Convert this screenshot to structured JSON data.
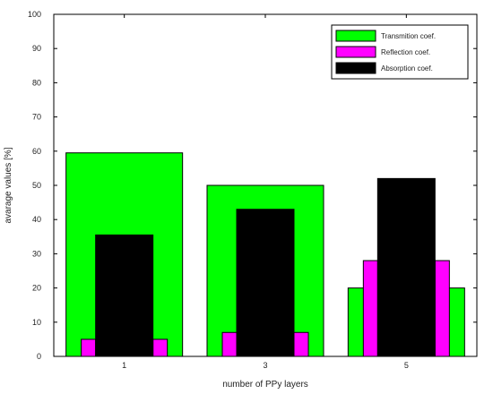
{
  "chart_data": {
    "type": "bar",
    "xlabel": "number of PPy layers",
    "ylabel": "avarage values [%]",
    "ylim": [
      0,
      100
    ],
    "y_ticks": [
      0,
      10,
      20,
      30,
      40,
      50,
      60,
      70,
      80,
      90,
      100
    ],
    "categories": [
      "1",
      "3",
      "5"
    ],
    "grid": false,
    "legend_position": "top-right",
    "series": [
      {
        "name": "Transmition coef.",
        "color": "#00ff00",
        "values": [
          59.5,
          50,
          20
        ]
      },
      {
        "name": "Reflection coef.",
        "color": "#ff00ff",
        "values": [
          5,
          7,
          28
        ]
      },
      {
        "name": "Absorption coef.",
        "color": "#000000",
        "values": [
          35.5,
          43,
          52
        ]
      }
    ]
  }
}
